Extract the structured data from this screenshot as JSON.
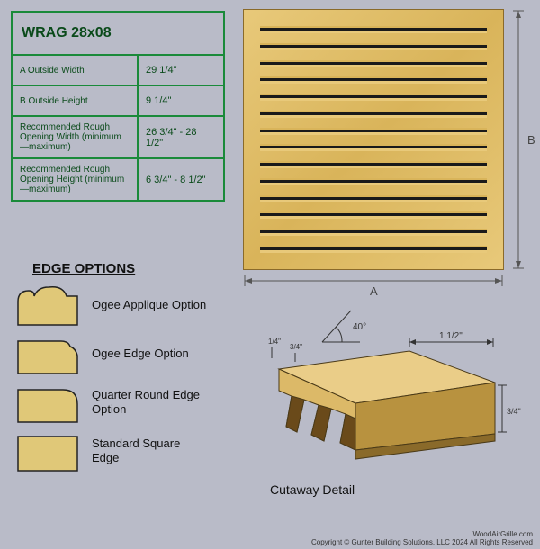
{
  "background_color": "#b9bbc8",
  "spec_table": {
    "border_color": "#1a8a3a",
    "text_color": "#0a4a1a",
    "title": "WRAG 28x08",
    "rows": [
      {
        "label": "A  Outside Width",
        "value": "29 1/4\""
      },
      {
        "label": "B  Outside Height",
        "value": "9 1/4\""
      },
      {
        "label": "Recommended Rough Opening Width (minimum—maximum)",
        "value": "26 3/4\" - 28 1/2\""
      },
      {
        "label": "Recommended Rough Opening Height (minimum—maximum)",
        "value": "6 3/4\" - 8 1/2\""
      }
    ]
  },
  "grille": {
    "wood_light": "#e8c97a",
    "wood_mid": "#d9b45a",
    "wood_dark": "#8a6a2a",
    "slat_count": 14,
    "dim_a_label": "A",
    "dim_b_label": "B"
  },
  "edge_options": {
    "title": "EDGE OPTIONS",
    "swatch_fill": "#e0c878",
    "swatch_stroke": "#222",
    "items": [
      {
        "label": "Ogee Applique Option",
        "shape": "ogee_applique"
      },
      {
        "label": "Ogee Edge Option",
        "shape": "ogee_edge"
      },
      {
        "label": "Quarter Round Edge Option",
        "shape": "quarter_round"
      },
      {
        "label": "Standard Square Edge",
        "shape": "square"
      }
    ]
  },
  "cutaway": {
    "label": "Cutaway Detail",
    "angle_label": "40°",
    "dim_top": "1 1/2\"",
    "dim_side": "3/4\"",
    "dim_small1": "1/4\"",
    "dim_small2": "3/4\"",
    "wood_face": "#dcb968",
    "wood_top": "#eacd88",
    "wood_side": "#b8923f",
    "stroke": "#4a3a18"
  },
  "footer": {
    "line1": "WoodAirGrille.com",
    "line2": "Copyright © Gunter Building Solutions, LLC 2024 All Rights Reserved"
  }
}
